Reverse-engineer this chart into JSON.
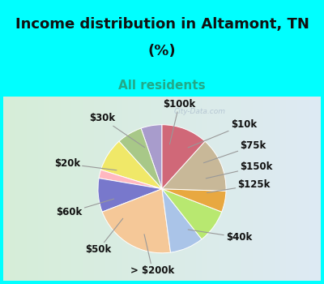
{
  "title_line1": "Income distribution in Altamont, TN",
  "title_line2": "(%)",
  "subtitle": "All residents",
  "title_fontsize": 13,
  "subtitle_fontsize": 11,
  "bg_color": "#00FFFF",
  "chart_bg_color_left": "#d6eed8",
  "chart_bg_color_right": "#deeaf4",
  "labels": [
    "$100k",
    "$10k",
    "$75k",
    "$150k",
    "$125k",
    "$40k",
    "> $200k",
    "$50k",
    "$60k",
    "$20k",
    "$30k"
  ],
  "values": [
    5,
    6,
    8,
    2,
    8,
    20,
    8,
    8,
    5,
    13,
    11
  ],
  "colors": [
    "#a89ccc",
    "#a8c888",
    "#f0e868",
    "#ffb8c0",
    "#7878cc",
    "#f5c898",
    "#aac4e8",
    "#b8e870",
    "#e8a840",
    "#c8b898",
    "#d06878"
  ],
  "startangle": 90,
  "label_fontsize": 8.5,
  "watermark": "City-Data.com"
}
